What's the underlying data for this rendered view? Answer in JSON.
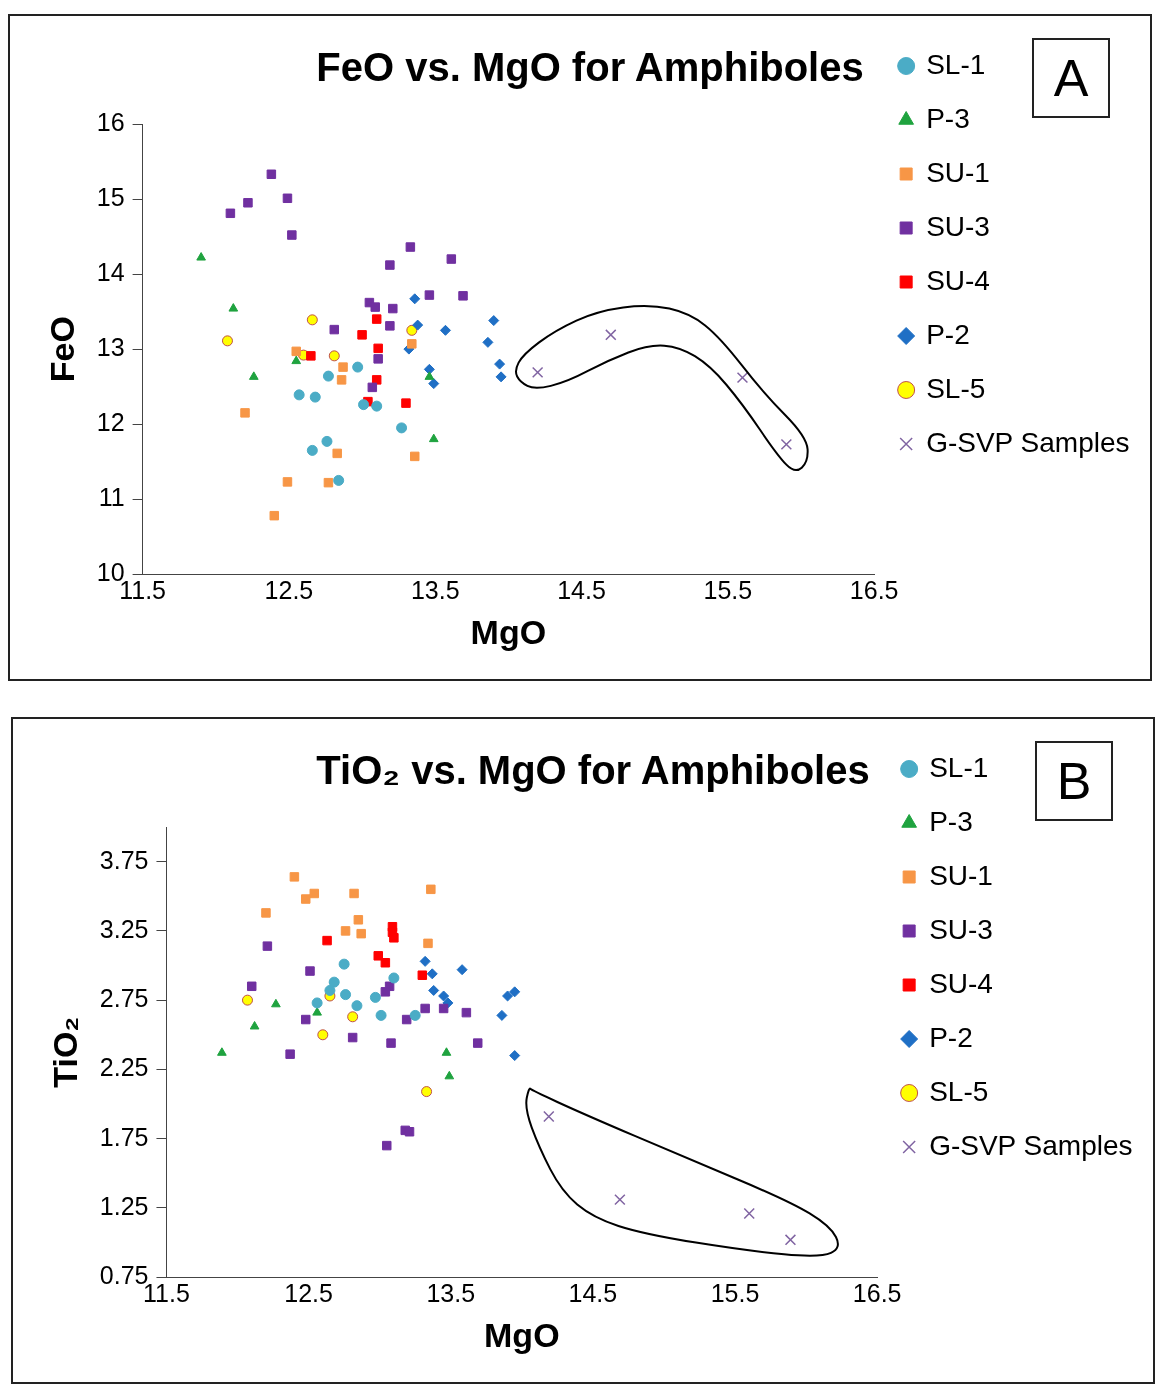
{
  "chart_data": [
    {
      "type": "scatter",
      "title": "FeO vs. MgO for Amphiboles",
      "xlabel": "MgO",
      "ylabel": "FeO",
      "annotations": [
        "A"
      ],
      "legend": "right",
      "grid": false,
      "xlim": [
        11.5,
        16.5
      ],
      "ylim": [
        10,
        16
      ],
      "xticks": [
        11.5,
        12.5,
        13.5,
        14.5,
        15.5,
        16.5
      ],
      "yticks": [
        10,
        11,
        12,
        13,
        14,
        15,
        16
      ],
      "series": [
        {
          "name": "SL-1",
          "color": "#4bacc6",
          "marker": "circle",
          "x": [
            12.97,
            12.77,
            12.57,
            12.68,
            13.01,
            13.1,
            13.27,
            12.76,
            12.66,
            12.84
          ],
          "values": [
            12.76,
            12.64,
            12.39,
            12.36,
            12.26,
            12.24,
            11.95,
            11.77,
            11.65,
            11.25
          ]
        },
        {
          "name": "P-3",
          "color": "#1fa33f",
          "marker": "triangle",
          "x": [
            11.9,
            12.12,
            12.26,
            12.55,
            13.46,
            13.49
          ],
          "values": [
            14.22,
            13.54,
            12.63,
            12.84,
            12.63,
            11.8
          ]
        },
        {
          "name": "SU-1",
          "color": "#f79646",
          "marker": "square",
          "x": [
            12.55,
            12.87,
            12.86,
            12.2,
            12.83,
            13.36,
            12.49,
            12.77,
            13.34,
            12.4
          ],
          "values": [
            12.97,
            12.76,
            12.59,
            12.15,
            11.61,
            11.57,
            11.23,
            11.22,
            13.07,
            10.78
          ]
        },
        {
          "name": "SU-3",
          "color": "#7030a0",
          "marker": "square",
          "x": [
            12.38,
            12.22,
            12.1,
            12.49,
            12.52,
            13.33,
            13.19,
            13.61,
            13.46,
            13.69,
            13.05,
            13.09,
            13.21,
            13.19,
            12.81,
            13.11,
            13.07
          ],
          "values": [
            15.33,
            14.95,
            14.81,
            15.01,
            14.52,
            14.36,
            14.12,
            14.2,
            13.72,
            13.71,
            13.62,
            13.56,
            13.54,
            13.31,
            13.26,
            12.87,
            12.49
          ]
        },
        {
          "name": "SU-4",
          "color": "#ff0000",
          "marker": "square",
          "x": [
            13.1,
            13.0,
            13.11,
            12.65,
            13.1,
            13.04,
            13.3
          ],
          "values": [
            13.4,
            13.19,
            13.01,
            12.91,
            12.59,
            12.3,
            12.28
          ]
        },
        {
          "name": "P-2",
          "color": "#1f6fc5",
          "marker": "diamond",
          "x": [
            13.36,
            13.38,
            13.57,
            13.9,
            13.86,
            13.32,
            13.46,
            13.49,
            13.94,
            13.95
          ],
          "values": [
            13.67,
            13.32,
            13.25,
            13.38,
            13.09,
            13.0,
            12.73,
            12.54,
            12.8,
            12.63
          ]
        },
        {
          "name": "SL-5",
          "color": "#ffff00",
          "marker": "circle",
          "x": [
            12.08,
            12.66,
            12.6,
            12.81,
            13.34
          ],
          "values": [
            13.11,
            13.39,
            12.92,
            12.91,
            13.25
          ]
        },
        {
          "name": "G-SVP Samples",
          "color": "#8064a2",
          "marker": "cross",
          "x": [
            14.2,
            14.7,
            15.6,
            15.9
          ],
          "values": [
            12.69,
            13.19,
            12.62,
            11.73
          ]
        }
      ]
    },
    {
      "type": "scatter",
      "title": "TiO₂ vs. MgO for Amphiboles",
      "xlabel": "MgO",
      "ylabel": "TiO₂",
      "annotations": [
        "B"
      ],
      "legend": "right",
      "grid": false,
      "xlim": [
        11.5,
        16.5
      ],
      "ylim": [
        0.75,
        4
      ],
      "xticks": [
        11.5,
        12.5,
        13.5,
        14.5,
        15.5,
        16.5
      ],
      "yticks": [
        0.75,
        1.25,
        1.75,
        2.25,
        2.75,
        3.25,
        3.75
      ],
      "series": [
        {
          "name": "SL-1",
          "color": "#4bacc6",
          "marker": "circle",
          "x": [
            12.75,
            12.68,
            12.65,
            12.76,
            12.56,
            12.84,
            12.97,
            13.1,
            13.01,
            13.25
          ],
          "values": [
            3.01,
            2.88,
            2.82,
            2.79,
            2.73,
            2.71,
            2.77,
            2.91,
            2.64,
            2.64
          ]
        },
        {
          "name": "P-3",
          "color": "#1fa33f",
          "marker": "triangle",
          "x": [
            11.89,
            12.12,
            12.27,
            12.56,
            13.47,
            13.49
          ],
          "values": [
            2.37,
            2.56,
            2.72,
            2.66,
            2.37,
            2.2
          ]
        },
        {
          "name": "SU-1",
          "color": "#f79646",
          "marker": "square",
          "x": [
            12.4,
            12.54,
            12.48,
            12.82,
            13.36,
            12.2,
            12.85,
            12.76,
            12.87,
            13.34
          ],
          "values": [
            3.64,
            3.52,
            3.48,
            3.52,
            3.55,
            3.38,
            3.33,
            3.25,
            3.23,
            3.16
          ]
        },
        {
          "name": "SU-3",
          "color": "#7030a0",
          "marker": "square",
          "x": [
            12.21,
            12.51,
            12.1,
            13.07,
            13.04,
            13.32,
            13.45,
            13.61,
            12.48,
            13.19,
            12.81,
            13.08,
            13.69,
            12.37,
            13.18,
            13.21,
            13.05
          ],
          "values": [
            3.14,
            2.96,
            2.85,
            2.85,
            2.81,
            2.69,
            2.69,
            2.66,
            2.61,
            2.61,
            2.48,
            2.44,
            2.44,
            2.36,
            1.81,
            1.8,
            1.7
          ]
        },
        {
          "name": "SU-4",
          "color": "#ff0000",
          "marker": "square",
          "x": [
            13.09,
            13.09,
            13.1,
            12.63,
            12.99,
            13.04,
            13.3
          ],
          "values": [
            3.28,
            3.24,
            3.2,
            3.18,
            3.07,
            3.02,
            2.93
          ]
        },
        {
          "name": "P-2",
          "color": "#1f6fc5",
          "marker": "diamond",
          "x": [
            13.32,
            13.37,
            13.58,
            13.38,
            13.45,
            13.48,
            13.86,
            13.9,
            13.95,
            13.95
          ],
          "values": [
            3.03,
            2.94,
            2.97,
            2.82,
            2.78,
            2.73,
            2.64,
            2.78,
            2.81,
            2.35
          ]
        },
        {
          "name": "SL-5",
          "color": "#ffff00",
          "marker": "circle",
          "x": [
            12.07,
            12.65,
            12.81,
            12.6,
            13.33
          ],
          "values": [
            2.75,
            2.78,
            2.63,
            2.5,
            2.09
          ]
        },
        {
          "name": "G-SVP Samples",
          "color": "#8064a2",
          "marker": "cross",
          "x": [
            14.19,
            14.69,
            15.6,
            15.89
          ],
          "values": [
            1.91,
            1.31,
            1.21,
            1.02
          ]
        }
      ]
    }
  ]
}
